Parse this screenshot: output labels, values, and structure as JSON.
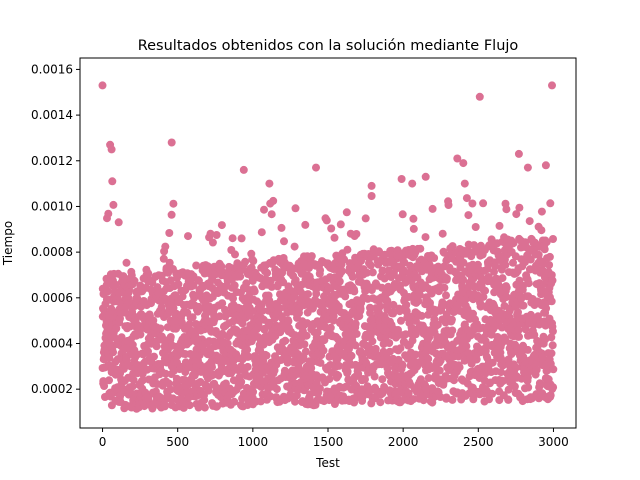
{
  "chart_data": {
    "type": "scatter",
    "title": "Resultados obtenidos con la solución mediante Flujo",
    "xlabel": "Test",
    "ylabel": "Tiempo",
    "xlim": [
      -150,
      3150
    ],
    "ylim": [
      3e-05,
      0.00165
    ],
    "xticks": [
      0,
      500,
      1000,
      1500,
      2000,
      2500,
      3000
    ],
    "xtick_labels": [
      "0",
      "500",
      "1000",
      "1500",
      "2000",
      "2500",
      "3000"
    ],
    "yticks": [
      0.0002,
      0.0004,
      0.0006,
      0.0008,
      0.001,
      0.0012,
      0.0014,
      0.0016
    ],
    "ytick_labels": [
      "0.0002",
      "0.0004",
      "0.0006",
      "0.0008",
      "0.0010",
      "0.0012",
      "0.0014",
      "0.0016"
    ],
    "grid": false,
    "legend": "none",
    "marker_color": "#db7093",
    "n_points": 3000,
    "notable_points": [
      {
        "x": 0,
        "y": 0.00153
      },
      {
        "x": 2990,
        "y": 0.00153
      },
      {
        "x": 2510,
        "y": 0.00148
      },
      {
        "x": 460,
        "y": 0.00128
      },
      {
        "x": 50,
        "y": 0.00127
      },
      {
        "x": 60,
        "y": 0.00125
      },
      {
        "x": 2770,
        "y": 0.00123
      },
      {
        "x": 2360,
        "y": 0.00121
      },
      {
        "x": 2400,
        "y": 0.00119
      },
      {
        "x": 2950,
        "y": 0.00118
      },
      {
        "x": 940,
        "y": 0.00116
      },
      {
        "x": 1420,
        "y": 0.00117
      },
      {
        "x": 2830,
        "y": 0.00117
      },
      {
        "x": 2150,
        "y": 0.00113
      },
      {
        "x": 1990,
        "y": 0.00112
      },
      {
        "x": 2060,
        "y": 0.0011
      },
      {
        "x": 2410,
        "y": 0.0011
      },
      {
        "x": 65,
        "y": 0.00111
      },
      {
        "x": 1790,
        "y": 0.00109
      },
      {
        "x": 1110,
        "y": 0.0011
      }
    ]
  }
}
